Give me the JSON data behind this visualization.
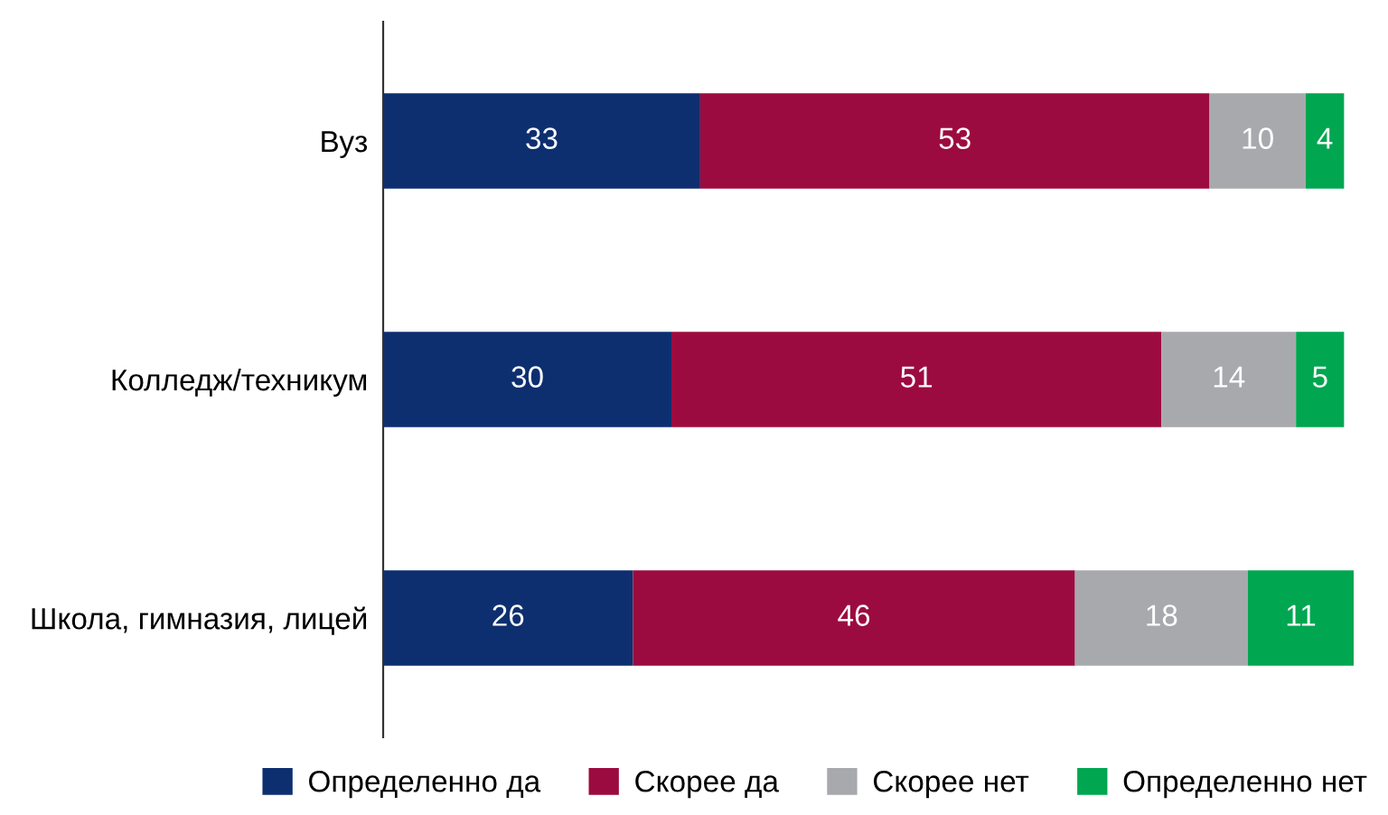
{
  "chart_data": {
    "type": "bar",
    "orientation": "horizontal",
    "stacked": true,
    "data_labels": true,
    "legend": "bottom",
    "grid": false,
    "categories": [
      "Вуз",
      "Колледж/техникум",
      "Школа, гимназия, лицей"
    ],
    "series": [
      {
        "name": "Определенно да",
        "color": "#0e2f6f",
        "values": [
          33,
          30,
          26
        ]
      },
      {
        "name": "Скорее да",
        "color": "#9c0b3f",
        "values": [
          53,
          51,
          46
        ]
      },
      {
        "name": "Скорее нет",
        "color": "#a8a9ad",
        "values": [
          10,
          14,
          18
        ]
      },
      {
        "name": "Определенно нет",
        "color": "#00a650",
        "values": [
          4,
          5,
          11
        ]
      }
    ]
  }
}
